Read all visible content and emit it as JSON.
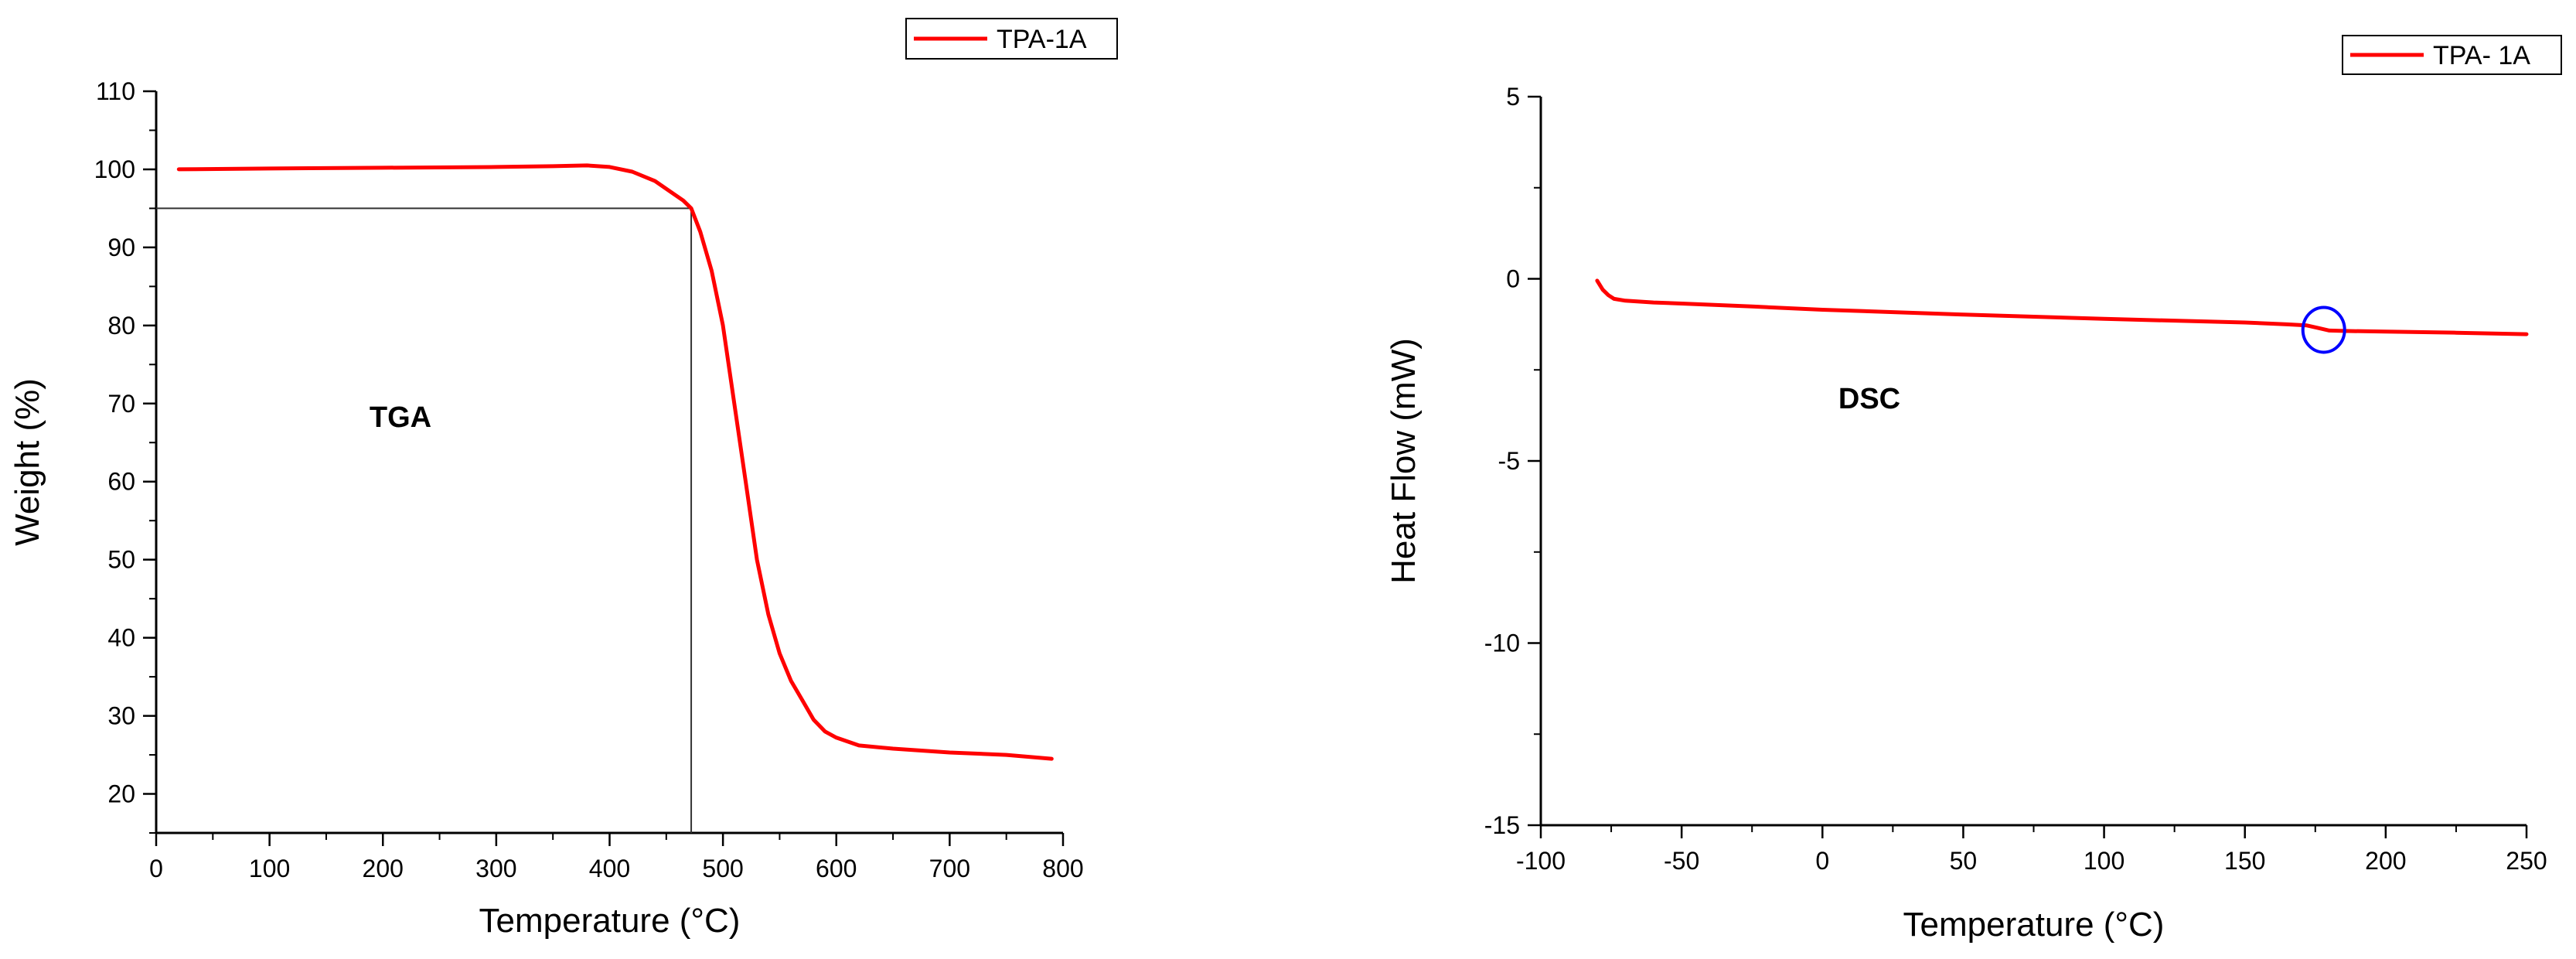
{
  "chart_data": [
    {
      "type": "line",
      "title": "",
      "xlabel": "Temperature (°C)",
      "ylabel": "Weight (%)",
      "xlim": [
        0,
        800
      ],
      "ylim": [
        15,
        110
      ],
      "xticks": [
        "0",
        "100",
        "200",
        "300",
        "400",
        "500",
        "600",
        "700",
        "800"
      ],
      "yticks": [
        "20",
        "30",
        "40",
        "50",
        "60",
        "70",
        "80",
        "90",
        "100",
        "110"
      ],
      "grid": false,
      "legend_position": "top-right",
      "annotation": "TGA",
      "reference_point": {
        "x": 472,
        "y": 95
      },
      "series": [
        {
          "name": "TPA-1A",
          "color": "#ff0000",
          "x": [
            20,
            100,
            200,
            300,
            350,
            380,
            400,
            420,
            440,
            455,
            465,
            472,
            480,
            490,
            500,
            510,
            520,
            530,
            540,
            550,
            560,
            570,
            580,
            590,
            600,
            620,
            650,
            700,
            750,
            790
          ],
          "y": [
            100,
            100.1,
            100.2,
            100.3,
            100.4,
            100.5,
            100.3,
            99.7,
            98.5,
            97,
            96,
            95,
            92,
            87,
            80,
            70,
            60,
            50,
            43,
            38,
            34.5,
            32,
            29.5,
            28,
            27.2,
            26.2,
            25.8,
            25.3,
            25,
            24.5
          ]
        }
      ]
    },
    {
      "type": "line",
      "title": "",
      "xlabel": "Temperature (°C)",
      "ylabel": "Heat Flow (mW)",
      "xlim": [
        -100,
        250
      ],
      "ylim": [
        -15,
        5
      ],
      "xticks": [
        "-100",
        "-50",
        "0",
        "50",
        "100",
        "150",
        "200",
        "250"
      ],
      "yticks": [
        "-15",
        "-10",
        "-5",
        "0",
        "5"
      ],
      "grid": false,
      "legend_position": "top-right",
      "annotation": "DSC",
      "highlight": {
        "x": 178,
        "y": -1.4,
        "color": "#0000ff"
      },
      "series": [
        {
          "name": "TPA- 1A",
          "color": "#ff0000",
          "x": [
            -80,
            -78,
            -76,
            -74,
            -70,
            -60,
            -50,
            -25,
            0,
            50,
            100,
            150,
            165,
            172,
            176,
            180,
            185,
            200,
            225,
            250
          ],
          "y": [
            -0.05,
            -0.3,
            -0.45,
            -0.55,
            -0.6,
            -0.65,
            -0.68,
            -0.76,
            -0.85,
            -0.98,
            -1.1,
            -1.2,
            -1.25,
            -1.28,
            -1.35,
            -1.42,
            -1.43,
            -1.45,
            -1.48,
            -1.52
          ]
        }
      ]
    }
  ]
}
